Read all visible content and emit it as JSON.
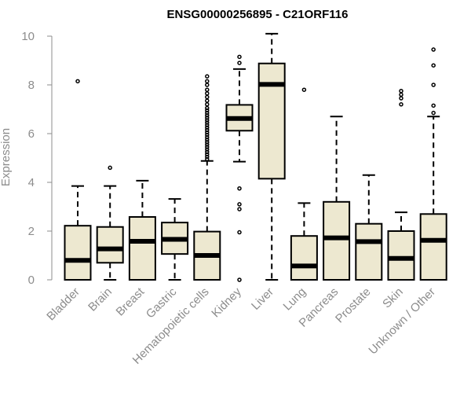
{
  "chart_data": {
    "type": "boxplot",
    "title": "ENSG00000256895 - C21ORF116",
    "xlabel": "",
    "ylabel": "Expression",
    "ylim": [
      0,
      10
    ],
    "yticks": [
      0,
      2,
      4,
      6,
      8,
      10
    ],
    "colors": {
      "box_fill": "#ede8d0",
      "stroke": "#000000",
      "axis": "#8c8c8c",
      "text": "#8c8c8c"
    },
    "categories": [
      "Bladder",
      "Brain",
      "Breast",
      "Gastric",
      "Hematopoietic cells",
      "Kidney",
      "Liver",
      "Lung",
      "Pancreas",
      "Prostate",
      "Skin",
      "Unknown / Other"
    ],
    "boxes": [
      {
        "category": "Bladder",
        "whisker_low": 0.0,
        "q1": 0.0,
        "median": 0.8,
        "q3": 2.22,
        "whisker_high": 3.85,
        "outliers": [
          8.15
        ]
      },
      {
        "category": "Brain",
        "whisker_low": 0.0,
        "q1": 0.7,
        "median": 1.27,
        "q3": 2.17,
        "whisker_high": 3.85,
        "outliers": [
          4.6
        ]
      },
      {
        "category": "Breast",
        "whisker_low": 0.0,
        "q1": 0.0,
        "median": 1.58,
        "q3": 2.58,
        "whisker_high": 4.07,
        "outliers": []
      },
      {
        "category": "Gastric",
        "whisker_low": 0.0,
        "q1": 1.06,
        "median": 1.66,
        "q3": 2.35,
        "whisker_high": 3.32,
        "outliers": []
      },
      {
        "category": "Hematopoietic cells",
        "whisker_low": 0.0,
        "q1": 0.0,
        "median": 1.0,
        "q3": 1.98,
        "whisker_high": 4.88,
        "outliers": [
          4.95,
          5.05,
          5.15,
          5.25,
          5.35,
          5.45,
          5.55,
          5.65,
          5.75,
          5.85,
          5.95,
          6.05,
          6.15,
          6.25,
          6.35,
          6.45,
          6.55,
          6.65,
          6.75,
          6.85,
          6.95,
          7.05,
          7.2,
          7.35,
          7.5,
          7.65,
          7.8,
          8.0,
          8.15,
          8.35
        ]
      },
      {
        "category": "Kidney",
        "whisker_low": 4.85,
        "q1": 6.12,
        "median": 6.62,
        "q3": 7.18,
        "whisker_high": 8.65,
        "outliers": [
          0.0,
          1.95,
          2.9,
          3.1,
          3.75,
          8.9,
          9.15
        ]
      },
      {
        "category": "Liver",
        "whisker_low": 0.0,
        "q1": 4.15,
        "median": 8.02,
        "q3": 8.88,
        "whisker_high": 10.1,
        "outliers": []
      },
      {
        "category": "Lung",
        "whisker_low": 0.0,
        "q1": 0.0,
        "median": 0.57,
        "q3": 1.8,
        "whisker_high": 3.15,
        "outliers": [
          7.8
        ]
      },
      {
        "category": "Pancreas",
        "whisker_low": 0.0,
        "q1": 0.0,
        "median": 1.72,
        "q3": 3.2,
        "whisker_high": 6.7,
        "outliers": []
      },
      {
        "category": "Prostate",
        "whisker_low": 0.0,
        "q1": 0.0,
        "median": 1.57,
        "q3": 2.3,
        "whisker_high": 4.3,
        "outliers": []
      },
      {
        "category": "Skin",
        "whisker_low": 0.0,
        "q1": 0.0,
        "median": 0.88,
        "q3": 2.0,
        "whisker_high": 2.77,
        "outliers": [
          7.2,
          7.45,
          7.6,
          7.75
        ]
      },
      {
        "category": "Unknown / Other",
        "whisker_low": 0.0,
        "q1": 0.0,
        "median": 1.62,
        "q3": 2.7,
        "whisker_high": 6.7,
        "outliers": [
          6.85,
          7.15,
          8.0,
          8.8,
          9.45
        ]
      }
    ]
  }
}
